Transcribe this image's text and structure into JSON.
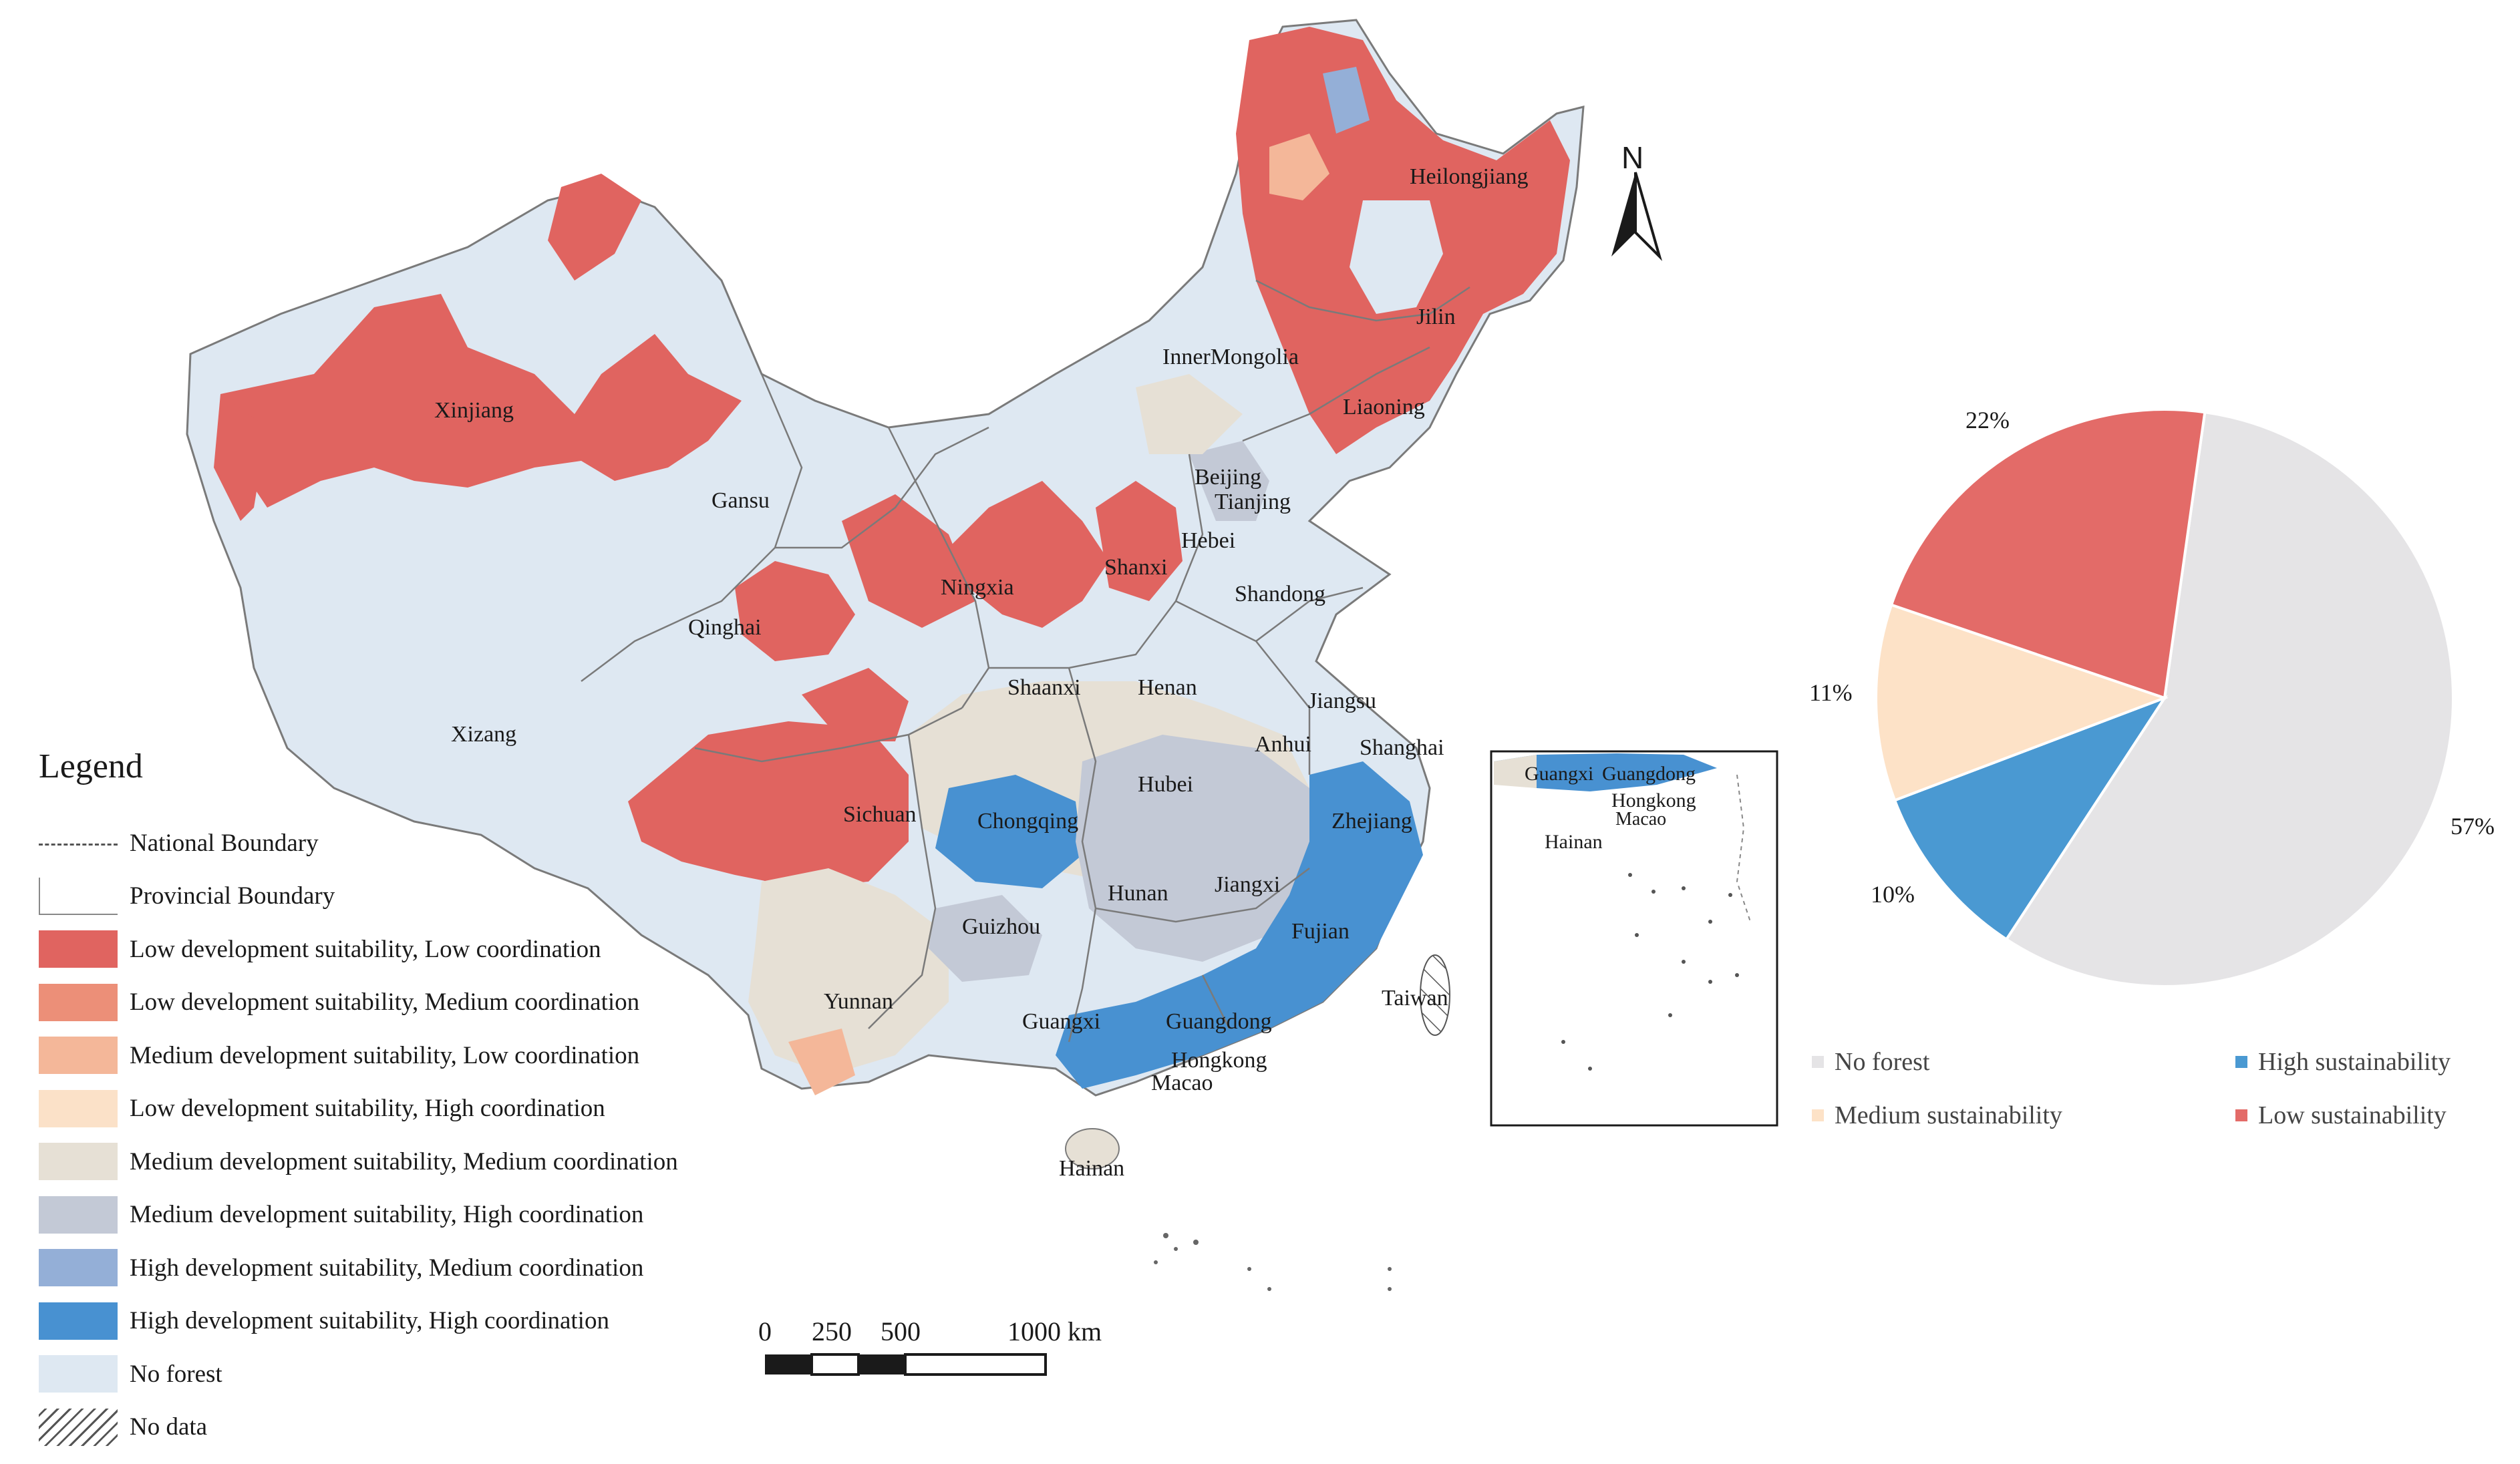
{
  "compass": {
    "label": "N"
  },
  "provinces": [
    {
      "name": "Heilongjiang"
    },
    {
      "name": "Jilin"
    },
    {
      "name": "InnerMongolia"
    },
    {
      "name": "Liaoning"
    },
    {
      "name": "Xinjiang"
    },
    {
      "name": "Gansu"
    },
    {
      "name": "Beijing"
    },
    {
      "name": "Tianjing"
    },
    {
      "name": "Hebei"
    },
    {
      "name": "Shanxi"
    },
    {
      "name": "Ningxia"
    },
    {
      "name": "Qinghai"
    },
    {
      "name": "Shandong"
    },
    {
      "name": "Shaanxi"
    },
    {
      "name": "Henan"
    },
    {
      "name": "Jiangsu"
    },
    {
      "name": "Xizang"
    },
    {
      "name": "Anhui"
    },
    {
      "name": "Shanghai"
    },
    {
      "name": "Hubei"
    },
    {
      "name": "Sichuan"
    },
    {
      "name": "Chongqing"
    },
    {
      "name": "Zhejiang"
    },
    {
      "name": "Hunan"
    },
    {
      "name": "Jiangxi"
    },
    {
      "name": "Guizhou"
    },
    {
      "name": "Fujian"
    },
    {
      "name": "Yunnan"
    },
    {
      "name": "Guangxi"
    },
    {
      "name": "Guangdong"
    },
    {
      "name": "Taiwan"
    },
    {
      "name": "Hongkong"
    },
    {
      "name": "Macao"
    },
    {
      "name": "Hainan"
    }
  ],
  "inset": {
    "labels": [
      {
        "name": "Guangxi"
      },
      {
        "name": "Guangdong"
      },
      {
        "name": "Hongkong"
      },
      {
        "name": "Macao"
      },
      {
        "name": "Hainan"
      }
    ]
  },
  "legend": {
    "title": "Legend",
    "items": [
      {
        "label": "National Boundary",
        "kind": "line-dashed"
      },
      {
        "label": "Provincial Boundary",
        "kind": "line-solid"
      },
      {
        "label": "Low development suitability, Low coordination",
        "color": "#e06460"
      },
      {
        "label": "Low development suitability, Medium coordination",
        "color": "#ec8f78"
      },
      {
        "label": "Medium development suitability, Low coordination",
        "color": "#f4b799"
      },
      {
        "label": "Low development suitability, High coordination",
        "color": "#fbe1c8"
      },
      {
        "label": "Medium development suitability, Medium coordination",
        "color": "#e6e0d5"
      },
      {
        "label": "Medium development suitability, High coordination",
        "color": "#c3c9d6"
      },
      {
        "label": "High development suitability, Medium coordination",
        "color": "#94afd7"
      },
      {
        "label": "High development suitability, High coordination",
        "color": "#4891d1"
      },
      {
        "label": "No forest",
        "color": "#dee8f2"
      },
      {
        "label": "No data",
        "kind": "hatch"
      }
    ]
  },
  "scalebar": {
    "ticks": [
      "0",
      "250",
      "500",
      "1000 km"
    ]
  },
  "chart_data": {
    "type": "pie",
    "slices": [
      {
        "name": "No forest",
        "value": 57,
        "label": "57%",
        "color": "#e5e4e6"
      },
      {
        "name": "High sustainability",
        "value": 10,
        "label": "10%",
        "color": "#4a99d2"
      },
      {
        "name": "Medium sustainability",
        "value": 11,
        "label": "11%",
        "color": "#fde2c7"
      },
      {
        "name": "Low sustainability",
        "value": 22,
        "label": "22%",
        "color": "#e36b68"
      }
    ],
    "legend": [
      "No forest",
      "High sustainability",
      "Medium sustainability",
      "Low sustainability"
    ],
    "legend_position": "bottom"
  }
}
